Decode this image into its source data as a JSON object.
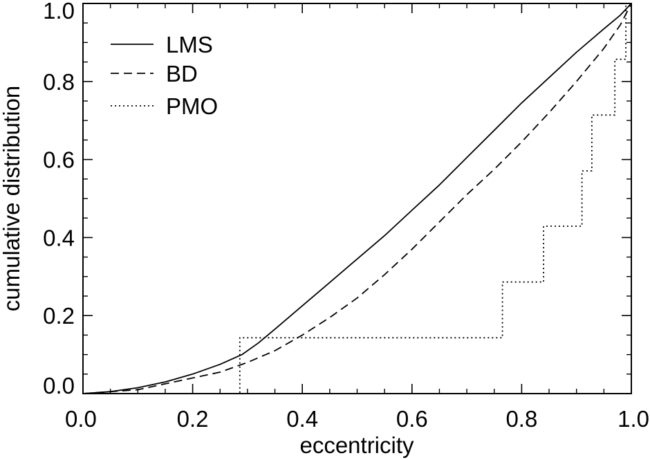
{
  "chart_data": {
    "type": "line",
    "title": "",
    "xlabel": "eccentricity",
    "ylabel": "cumulative distribution",
    "xlim": [
      0.0,
      1.0
    ],
    "ylim": [
      0.0,
      1.0
    ],
    "xticks": [
      "0.0",
      "0.2",
      "0.4",
      "0.6",
      "0.8",
      "1.0"
    ],
    "yticks": [
      "0.0",
      "0.2",
      "0.4",
      "0.6",
      "0.8",
      "1.0"
    ],
    "grid": false,
    "legend_position": "top-left",
    "series": [
      {
        "name": "LMS",
        "style": "solid",
        "x": [
          0.0,
          0.05,
          0.1,
          0.15,
          0.2,
          0.25,
          0.29,
          0.32,
          0.35,
          0.4,
          0.45,
          0.5,
          0.55,
          0.6,
          0.65,
          0.7,
          0.75,
          0.8,
          0.85,
          0.9,
          0.95,
          0.98,
          1.0
        ],
        "y": [
          0.0,
          0.005,
          0.015,
          0.03,
          0.05,
          0.075,
          0.1,
          0.13,
          0.165,
          0.225,
          0.285,
          0.345,
          0.405,
          0.47,
          0.535,
          0.605,
          0.675,
          0.745,
          0.81,
          0.875,
          0.935,
          0.97,
          1.0
        ]
      },
      {
        "name": "BD",
        "style": "dashed",
        "x": [
          0.0,
          0.1,
          0.15,
          0.2,
          0.25,
          0.3,
          0.35,
          0.4,
          0.45,
          0.5,
          0.55,
          0.6,
          0.65,
          0.7,
          0.75,
          0.8,
          0.85,
          0.9,
          0.95,
          0.98,
          1.0
        ],
        "y": [
          0.0,
          0.01,
          0.025,
          0.04,
          0.055,
          0.08,
          0.11,
          0.15,
          0.195,
          0.245,
          0.305,
          0.37,
          0.44,
          0.51,
          0.575,
          0.645,
          0.72,
          0.8,
          0.885,
          0.945,
          1.0
        ]
      },
      {
        "name": "PMO",
        "style": "dotted",
        "steps": true,
        "x": [
          0.0,
          0.286,
          0.286,
          0.765,
          0.765,
          0.84,
          0.84,
          0.91,
          0.91,
          0.928,
          0.928,
          0.97,
          0.97,
          0.99,
          0.99,
          1.0
        ],
        "y": [
          0.0,
          0.0,
          0.143,
          0.143,
          0.286,
          0.286,
          0.429,
          0.429,
          0.571,
          0.571,
          0.714,
          0.714,
          0.857,
          0.857,
          1.0,
          1.0
        ]
      }
    ]
  }
}
